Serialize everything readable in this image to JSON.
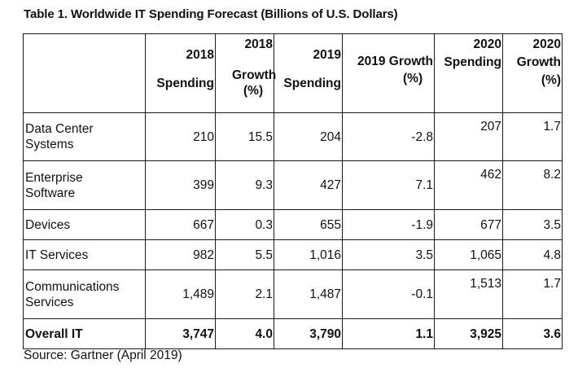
{
  "title": "Table 1. Worldwide IT Spending Forecast (Billions of U.S. Dollars)",
  "headers": {
    "h2018_year": "2018",
    "h2018_spending": "Spending",
    "h2018g_year": "2018",
    "h2018g_growth": "Growth",
    "h2018g_pct": "(%)",
    "h2019_year": "2019",
    "h2019_spending": "Spending",
    "h2019g_label": "2019 Growth",
    "h2019g_pct": "(%)",
    "h2020_year": "2020",
    "h2020_spending": "Spending",
    "h2020g_year": "2020",
    "h2020g_growth": "Growth",
    "h2020g_pct": "(%)"
  },
  "rows": [
    {
      "label_1": "Data Center",
      "label_2": "Systems",
      "s2018": "210",
      "g2018": "15.5",
      "s2019": "204",
      "g2019": "-2.8",
      "s2020": "207",
      "g2020": "1.7"
    },
    {
      "label_1": "Enterprise",
      "label_2": "Software",
      "s2018": "399",
      "g2018": "9.3",
      "s2019": "427",
      "g2019": "7.1",
      "s2020": "462",
      "g2020": "8.2"
    },
    {
      "label_1": "Devices",
      "s2018": "667",
      "g2018": "0.3",
      "s2019": "655",
      "g2019": "-1.9",
      "s2020": "677",
      "g2020": "3.5"
    },
    {
      "label_1": "IT Services",
      "s2018": "982",
      "g2018": "5.5",
      "s2019": "1,016",
      "g2019": "3.5",
      "s2020": "1,065",
      "g2020": "4.8"
    },
    {
      "label_1": "Communications",
      "label_2": "Services",
      "s2018": "1,489",
      "g2018": "2.1",
      "s2019": "1,487",
      "g2019": "-0.1",
      "s2020": "1,513",
      "g2020": "1.7"
    }
  ],
  "total": {
    "label": "Overall IT",
    "s2018": "3,747",
    "g2018": "4.0",
    "s2019": "3,790",
    "g2019": "1.1",
    "s2020": "3,925",
    "g2020": "3.6"
  },
  "source": "Source: Gartner (April 2019)"
}
